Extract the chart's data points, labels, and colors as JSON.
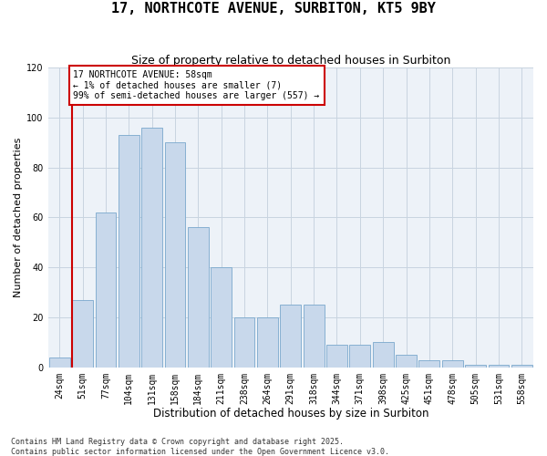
{
  "title": "17, NORTHCOTE AVENUE, SURBITON, KT5 9BY",
  "subtitle": "Size of property relative to detached houses in Surbiton",
  "xlabel": "Distribution of detached houses by size in Surbiton",
  "ylabel": "Number of detached properties",
  "categories": [
    "24sqm",
    "51sqm",
    "77sqm",
    "104sqm",
    "131sqm",
    "158sqm",
    "184sqm",
    "211sqm",
    "238sqm",
    "264sqm",
    "291sqm",
    "318sqm",
    "344sqm",
    "371sqm",
    "398sqm",
    "425sqm",
    "451sqm",
    "478sqm",
    "505sqm",
    "531sqm",
    "558sqm"
  ],
  "values": [
    4,
    27,
    62,
    93,
    96,
    90,
    56,
    40,
    20,
    20,
    25,
    25,
    9,
    9,
    10,
    5,
    3,
    3,
    1,
    1,
    1
  ],
  "bar_color": "#c8d8eb",
  "bar_edge_color": "#7aa8cc",
  "grid_color": "#c8d4e0",
  "bg_color": "#edf2f8",
  "vline_color": "#cc0000",
  "vline_x_idx": 1,
  "annotation_text": "17 NORTHCOTE AVENUE: 58sqm\n← 1% of detached houses are smaller (7)\n99% of semi-detached houses are larger (557) →",
  "annotation_box_facecolor": "#ffffff",
  "annotation_box_edgecolor": "#cc0000",
  "ylim": [
    0,
    120
  ],
  "yticks": [
    0,
    20,
    40,
    60,
    80,
    100,
    120
  ],
  "footer": "Contains HM Land Registry data © Crown copyright and database right 2025.\nContains public sector information licensed under the Open Government Licence v3.0.",
  "title_fontsize": 11,
  "subtitle_fontsize": 9,
  "xlabel_fontsize": 8.5,
  "ylabel_fontsize": 8,
  "tick_fontsize": 7,
  "annot_fontsize": 7,
  "footer_fontsize": 6
}
